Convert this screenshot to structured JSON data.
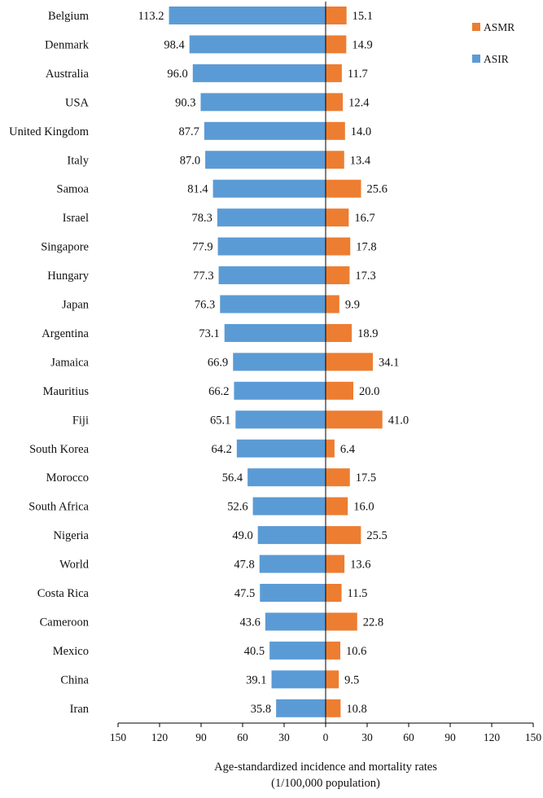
{
  "chart_data": {
    "type": "bar",
    "orientation": "horizontal-diverging",
    "xlabel": "Age-standardized incidence and mortality rates",
    "xlabel_line2": "(1/100,000 population)",
    "xlim": [
      -150,
      150
    ],
    "ticks": [
      150,
      120,
      90,
      60,
      30,
      0,
      30,
      60,
      90,
      120,
      150
    ],
    "legend_position": "top-right",
    "colors": {
      "ASIR": "#5b9bd5",
      "ASMR": "#ed7d31"
    },
    "categories": [
      "Belgium",
      "Denmark",
      "Australia",
      "USA",
      "United Kingdom",
      "Italy",
      "Samoa",
      "Israel",
      "Singapore",
      "Hungary",
      "Japan",
      "Argentina",
      "Jamaica",
      "Mauritius",
      "Fiji",
      "South Korea",
      "Morocco",
      "South Africa",
      "Nigeria",
      "World",
      "Costa Rica",
      "Cameroon",
      "Mexico",
      "China",
      "Iran"
    ],
    "series": [
      {
        "name": "ASIR",
        "side": "left",
        "values": [
          113.2,
          98.4,
          96.0,
          90.3,
          87.7,
          87.0,
          81.4,
          78.3,
          77.9,
          77.3,
          76.3,
          73.1,
          66.9,
          66.2,
          65.1,
          64.2,
          56.4,
          52.6,
          49.0,
          47.8,
          47.5,
          43.6,
          40.5,
          39.1,
          35.8
        ]
      },
      {
        "name": "ASMR",
        "side": "right",
        "values": [
          15.1,
          14.9,
          11.7,
          12.4,
          14.0,
          13.4,
          25.6,
          16.7,
          17.8,
          17.3,
          9.9,
          18.9,
          34.1,
          20.0,
          41.0,
          6.4,
          17.5,
          16.0,
          25.5,
          13.6,
          11.5,
          22.8,
          10.6,
          9.5,
          10.8
        ]
      }
    ],
    "legend": [
      "ASMR",
      "ASIR"
    ]
  }
}
